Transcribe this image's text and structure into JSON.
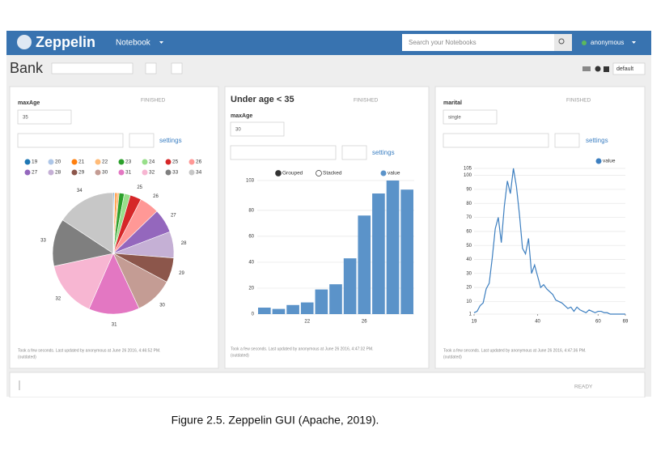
{
  "navbar": {
    "brand": "Zeppelin",
    "menu": "Notebook",
    "search_placeholder": "Search your Notebooks",
    "user": "anonymous"
  },
  "notebook": {
    "title": "Bank",
    "interpreter": "default"
  },
  "paragraphs": [
    {
      "status": "FINISHED",
      "param_label": "maxAge",
      "param_value": "35",
      "settings": "settings",
      "footer": "Took a few seconds. Last updated by anonymous at June 26 2016, 4:46:52 PM.",
      "footer_note": "(outdated)",
      "chart_data": {
        "type": "pie",
        "categories": [
          "19",
          "20",
          "21",
          "22",
          "23",
          "24",
          "25",
          "26",
          "27",
          "28",
          "29",
          "30",
          "31",
          "32",
          "33",
          "34"
        ],
        "values": [
          4,
          3,
          7,
          9,
          20,
          24,
          44,
          77,
          94,
          103,
          97,
          150,
          199,
          221,
          186,
          231
        ],
        "colors": [
          "#1f77b4",
          "#aec7e8",
          "#ff7f0e",
          "#ffbb78",
          "#2ca02c",
          "#98df8a",
          "#d62728",
          "#ff9896",
          "#9467bd",
          "#c5b0d5",
          "#8c564b",
          "#c49c94",
          "#e377c2",
          "#f7b6d2",
          "#7f7f7f",
          "#c7c7c7"
        ]
      }
    },
    {
      "status": "FINISHED",
      "title": "Under age < 35",
      "param_label": "maxAge",
      "param_value": "30",
      "settings": "settings",
      "footer": "Took a few seconds. Last updated by anonymous at June 26 2016, 4:47:32 PM.",
      "footer_note": "(outdated)",
      "chart_data": {
        "type": "bar",
        "controls": [
          "Grouped",
          "Stacked"
        ],
        "categories": [
          null,
          null,
          null,
          "22",
          null,
          null,
          null,
          "26",
          null,
          null,
          null
        ],
        "series": [
          {
            "name": "value",
            "color": "#5b93c9",
            "values": [
              5,
              4,
              7,
              9,
              19,
              23,
              43,
              76,
              93,
              103,
              96
            ]
          }
        ],
        "ylim": [
          0,
          103
        ],
        "yticks": [
          0,
          20,
          40,
          60,
          80,
          103
        ],
        "grid": true
      }
    },
    {
      "status": "FINISHED",
      "param_label": "marital",
      "param_value": "single",
      "settings": "settings",
      "footer": "Took a few seconds. Last updated by anonymous at June 26 2016, 4:47:36 PM.",
      "footer_note": "(outdated)",
      "chart_data": {
        "type": "line",
        "x": [
          19,
          20,
          21,
          22,
          23,
          24,
          25,
          26,
          27,
          28,
          29,
          30,
          31,
          32,
          33,
          34,
          35,
          36,
          37,
          38,
          39,
          40,
          41,
          42,
          43,
          44,
          45,
          46,
          47,
          48,
          49,
          50,
          51,
          52,
          53,
          54,
          55,
          56,
          57,
          58,
          59,
          60,
          61,
          62,
          63,
          64,
          65,
          66,
          67,
          68,
          69
        ],
        "series": [
          {
            "name": "value",
            "color": "#3d7fc0",
            "values": [
              2,
              3,
              7,
              9,
              19,
              23,
              41,
              62,
              70,
              52,
              78,
              96,
              87,
              105,
              92,
              72,
              48,
              44,
              55,
              30,
              36,
              28,
              20,
              22,
              19,
              17,
              15,
              11,
              10,
              9,
              7,
              5,
              6,
              3,
              6,
              4,
              3,
              2,
              4,
              3,
              2,
              3,
              3,
              2,
              2,
              1,
              1,
              1,
              1,
              1,
              1
            ]
          }
        ],
        "xlim": [
          19,
          69
        ],
        "xticks": [
          19,
          40,
          60,
          69
        ],
        "ylim": [
          1,
          105
        ],
        "yticks": [
          1,
          10,
          20,
          30,
          40,
          50,
          60,
          70,
          80,
          90,
          100,
          105
        ],
        "grid": true
      }
    },
    {
      "status": "READY"
    }
  ],
  "caption": "Figure 2.5. Zeppelin GUI (Apache, 2019)."
}
